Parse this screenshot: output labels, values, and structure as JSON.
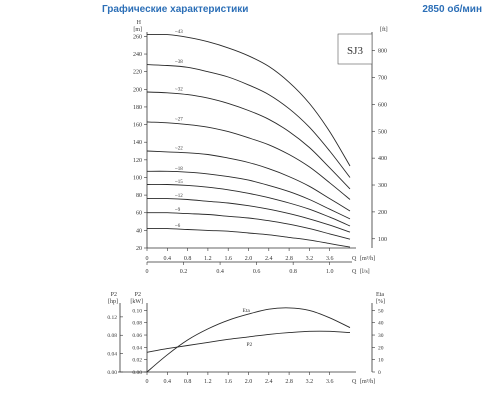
{
  "header": {
    "title": "Графические характеристики",
    "speed": "2850 об/мин"
  },
  "chart_data": [
    {
      "type": "line",
      "model_label": "SJ3",
      "axes": {
        "y_left_symbol": "H",
        "y_left_unit": "[m]",
        "y_left_ticks": [
          "20",
          "40",
          "60",
          "80",
          "100",
          "120",
          "140",
          "160",
          "180",
          "200",
          "220",
          "240",
          "260"
        ],
        "y_left_range": [
          20,
          265
        ],
        "y_right_unit": "[ft]",
        "y_right_ticks": [
          "100",
          "200",
          "300",
          "400",
          "500",
          "600",
          "700",
          "800"
        ],
        "x_symbol": "Q",
        "x_unit": "[m³/h]",
        "x_ticks": [
          "0",
          "0.4",
          "0.8",
          "1.2",
          "1.6",
          "2.0",
          "2.4",
          "2.8",
          "3.2",
          "3.6"
        ],
        "x_range": [
          0,
          4.0
        ],
        "x2_symbol": "Q",
        "x2_unit": "[l/s]",
        "x2_ticks": [
          "0",
          "0.2",
          "0.4",
          "0.6",
          "0.8",
          "1.0"
        ]
      },
      "series": [
        {
          "name": "~43",
          "values": [
            [
              0,
              262
            ],
            [
              0.4,
              262
            ],
            [
              0.8,
              259
            ],
            [
              1.2,
              254
            ],
            [
              1.6,
              247
            ],
            [
              2.0,
              238
            ],
            [
              2.4,
              226
            ],
            [
              2.8,
              208
            ],
            [
              3.2,
              184
            ],
            [
              3.6,
              152
            ],
            [
              4.0,
              113
            ]
          ]
        },
        {
          "name": "~38",
          "values": [
            [
              0,
              228
            ],
            [
              0.4,
              227
            ],
            [
              0.8,
              225
            ],
            [
              1.2,
              220
            ],
            [
              1.6,
              214
            ],
            [
              2.0,
              205
            ],
            [
              2.4,
              194
            ],
            [
              2.8,
              178
            ],
            [
              3.2,
              157
            ],
            [
              3.6,
              130
            ],
            [
              4.0,
              100
            ]
          ]
        },
        {
          "name": "~32",
          "values": [
            [
              0,
              197
            ],
            [
              0.4,
              196
            ],
            [
              0.8,
              194
            ],
            [
              1.2,
              190
            ],
            [
              1.6,
              184
            ],
            [
              2.0,
              176
            ],
            [
              2.4,
              166
            ],
            [
              2.8,
              152
            ],
            [
              3.2,
              134
            ],
            [
              3.6,
              111
            ],
            [
              4.0,
              87
            ]
          ]
        },
        {
          "name": "~27",
          "values": [
            [
              0,
              163
            ],
            [
              0.4,
              162
            ],
            [
              0.8,
              160
            ],
            [
              1.2,
              157
            ],
            [
              1.6,
              152
            ],
            [
              2.0,
              145
            ],
            [
              2.4,
              137
            ],
            [
              2.8,
              126
            ],
            [
              3.2,
              112
            ],
            [
              3.6,
              94
            ],
            [
              4.0,
              75
            ]
          ]
        },
        {
          "name": "~22",
          "values": [
            [
              0,
              130
            ],
            [
              0.4,
              129
            ],
            [
              0.8,
              128
            ],
            [
              1.2,
              126
            ],
            [
              1.6,
              122
            ],
            [
              2.0,
              117
            ],
            [
              2.4,
              110
            ],
            [
              2.8,
              101
            ],
            [
              3.2,
              90
            ],
            [
              3.6,
              76
            ],
            [
              4.0,
              62
            ]
          ]
        },
        {
          "name": "~18",
          "values": [
            [
              0,
              107
            ],
            [
              0.4,
              107
            ],
            [
              0.8,
              106
            ],
            [
              1.2,
              104
            ],
            [
              1.6,
              101
            ],
            [
              2.0,
              97
            ],
            [
              2.4,
              91
            ],
            [
              2.8,
              84
            ],
            [
              3.2,
              75
            ],
            [
              3.6,
              64
            ],
            [
              4.0,
              53
            ]
          ]
        },
        {
          "name": "~15",
          "values": [
            [
              0,
              92
            ],
            [
              0.4,
              92
            ],
            [
              0.8,
              91
            ],
            [
              1.2,
              89
            ],
            [
              1.6,
              86
            ],
            [
              2.0,
              82
            ],
            [
              2.4,
              77
            ],
            [
              2.8,
              71
            ],
            [
              3.2,
              64
            ],
            [
              3.6,
              55
            ],
            [
              4.0,
              45
            ]
          ]
        },
        {
          "name": "~12",
          "values": [
            [
              0,
              76
            ],
            [
              0.4,
              76
            ],
            [
              0.8,
              75
            ],
            [
              1.2,
              73
            ],
            [
              1.6,
              71
            ],
            [
              2.0,
              68
            ],
            [
              2.4,
              64
            ],
            [
              2.8,
              59
            ],
            [
              3.2,
              53
            ],
            [
              3.6,
              46
            ],
            [
              4.0,
              38
            ]
          ]
        },
        {
          "name": "~9",
          "values": [
            [
              0,
              60
            ],
            [
              0.4,
              60
            ],
            [
              0.8,
              59
            ],
            [
              1.2,
              58
            ],
            [
              1.6,
              56
            ],
            [
              2.0,
              54
            ],
            [
              2.4,
              51
            ],
            [
              2.8,
              47
            ],
            [
              3.2,
              42
            ],
            [
              3.6,
              36
            ],
            [
              4.0,
              30
            ]
          ]
        },
        {
          "name": "~6",
          "values": [
            [
              0,
              42
            ],
            [
              0.4,
              42
            ],
            [
              0.8,
              41
            ],
            [
              1.2,
              40
            ],
            [
              1.6,
              39
            ],
            [
              2.0,
              37
            ],
            [
              2.4,
              35
            ],
            [
              2.8,
              32
            ],
            [
              3.2,
              29
            ],
            [
              3.6,
              25
            ],
            [
              4.0,
              21
            ]
          ]
        }
      ]
    },
    {
      "type": "line",
      "axes": {
        "y_left_outer_symbol": "P2",
        "y_left_outer_unit": "[hp]",
        "y_left_outer_ticks": [
          "0.00",
          "0.04",
          "0.08",
          "0.12"
        ],
        "y_left_symbol": "P2",
        "y_left_unit": "[kW]",
        "y_left_ticks": [
          "0.00",
          "0.02",
          "0.04",
          "0.06",
          "0.08",
          "0.10"
        ],
        "y_left_range": [
          0,
          0.112
        ],
        "y_right_symbol": "Eta",
        "y_right_unit": "[%]",
        "y_right_ticks": [
          "0",
          "10",
          "20",
          "30",
          "40",
          "50"
        ],
        "y_right_range": [
          0,
          56
        ],
        "x_symbol": "Q",
        "x_unit": "[m³/h]",
        "x_ticks": [
          "0",
          "0.4",
          "0.8",
          "1.2",
          "1.6",
          "2.0",
          "2.4",
          "2.8",
          "3.2",
          "3.6"
        ],
        "x_range": [
          0,
          4.0
        ]
      },
      "series": [
        {
          "name": "Eta",
          "axis": "right",
          "values": [
            [
              0,
              0
            ],
            [
              0.4,
              14
            ],
            [
              0.8,
              26
            ],
            [
              1.2,
              35
            ],
            [
              1.6,
              42
            ],
            [
              2.0,
              47
            ],
            [
              2.4,
              51
            ],
            [
              2.8,
              52
            ],
            [
              3.2,
              50
            ],
            [
              3.6,
              44
            ],
            [
              4.0,
              36
            ]
          ]
        },
        {
          "name": "P2",
          "axis": "left",
          "values": [
            [
              0,
              0.032
            ],
            [
              0.4,
              0.038
            ],
            [
              0.8,
              0.043
            ],
            [
              1.2,
              0.048
            ],
            [
              1.6,
              0.053
            ],
            [
              2.0,
              0.057
            ],
            [
              2.4,
              0.061
            ],
            [
              2.8,
              0.064
            ],
            [
              3.2,
              0.066
            ],
            [
              3.6,
              0.066
            ],
            [
              4.0,
              0.064
            ]
          ]
        }
      ]
    }
  ]
}
